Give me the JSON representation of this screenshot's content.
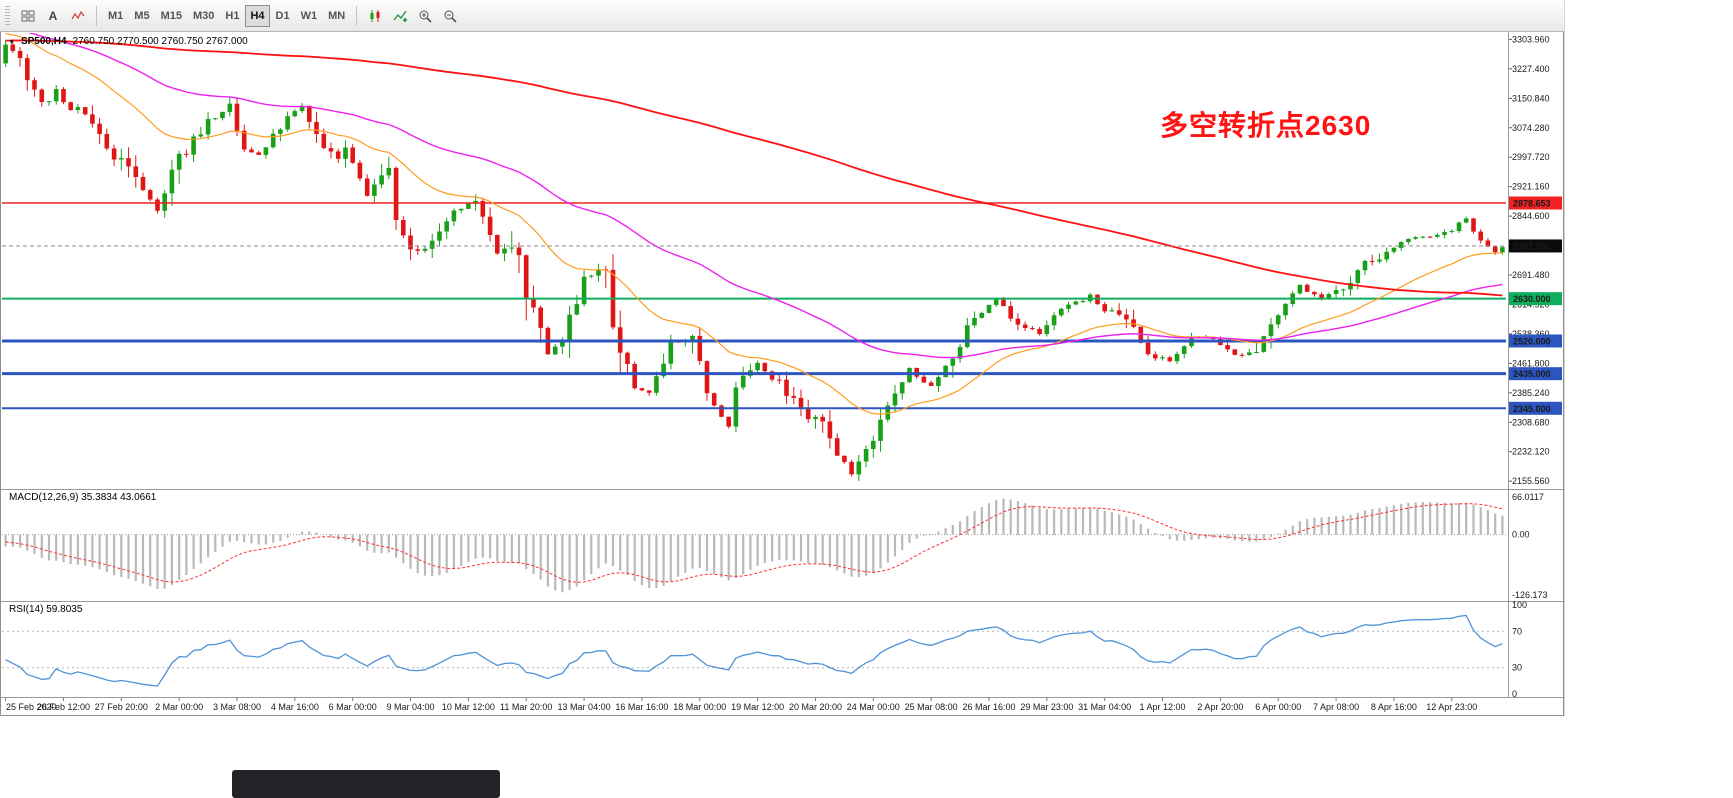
{
  "toolbar": {
    "left_icons": [
      {
        "name": "chart-windows-icon"
      },
      {
        "name": "annotation-tool-icon",
        "glyph": "A"
      },
      {
        "name": "tick-chart-icon"
      }
    ],
    "timeframes": [
      {
        "label": "M1",
        "active": false
      },
      {
        "label": "M5",
        "active": false
      },
      {
        "label": "M15",
        "active": false
      },
      {
        "label": "M30",
        "active": false
      },
      {
        "label": "H1",
        "active": false
      },
      {
        "label": "H4",
        "active": true
      },
      {
        "label": "D1",
        "active": false
      },
      {
        "label": "W1",
        "active": false
      },
      {
        "label": "MN",
        "active": false
      }
    ],
    "right_icons": [
      {
        "name": "candlestick-view-icon"
      },
      {
        "name": "indicators-icon"
      },
      {
        "name": "zoom-in-icon"
      },
      {
        "name": "zoom-out-icon"
      }
    ]
  },
  "chart": {
    "title": {
      "dropdown_glyph": "▼",
      "symbol_period": "SP500,H4",
      "ohlc": "2760.750 2770.500 2760.750 2767.000"
    },
    "annotation": {
      "text": "多空转折点2630",
      "color": "#ff1212"
    },
    "current_price": {
      "label": "2767.000",
      "value": 2767.0,
      "badge_color": "#0a0a0a"
    },
    "price_ticks": [
      "3303.960",
      "3227.400",
      "3150.840",
      "3074.280",
      "2997.720",
      "2921.160",
      "2844.600",
      "2768.040",
      "2691.480",
      "2614.920",
      "2538.360",
      "2461.800",
      "2385.240",
      "2308.680",
      "2232.120",
      "2155.560"
    ],
    "hlines": [
      {
        "label": "2878.653",
        "price": 2878.653,
        "color": "#f02222",
        "width": 1.4
      },
      {
        "label": "2630.000",
        "price": 2630.0,
        "color": "#0fae5d",
        "width": 2
      },
      {
        "label": "2520.000",
        "price": 2520.0,
        "color": "#2c55c0",
        "width": 3
      },
      {
        "label": "2435.000",
        "price": 2435.0,
        "color": "#2c55c0",
        "width": 3
      },
      {
        "label": "2345.000",
        "price": 2345.0,
        "color": "#2c55c0",
        "width": 2
      }
    ],
    "time_labels": [
      "25 Feb 2020",
      "26 Feb 12:00",
      "27 Feb 20:00",
      "2 Mar 00:00",
      "3 Mar 08:00",
      "4 Mar 16:00",
      "6 Mar 00:00",
      "9 Mar 04:00",
      "10 Mar 12:00",
      "11 Mar 20:00",
      "13 Mar 04:00",
      "16 Mar 16:00",
      "18 Mar 00:00",
      "19 Mar 12:00",
      "20 Mar 20:00",
      "24 Mar 00:00",
      "25 Mar 08:00",
      "26 Mar 16:00",
      "29 Mar 23:00",
      "31 Mar 04:00",
      "1 Apr 12:00",
      "2 Apr 20:00",
      "6 Apr 00:00",
      "7 Apr 08:00",
      "8 Apr 16:00",
      "12 Apr 23:00"
    ]
  },
  "macd": {
    "label": "MACD(12,26,9) 35.3834 43.0661",
    "axis_max": "66.0117",
    "axis_zero": "0.00",
    "axis_min": "-126.173",
    "histogram_color": "#b9b9b9",
    "signal_color": "#ff3030"
  },
  "rsi": {
    "label": "RSI(14) 59.8035",
    "axis": [
      "100",
      "70",
      "30",
      "0"
    ],
    "levels": [
      70,
      30
    ],
    "line_color": "#4f93d8"
  },
  "chart_data": {
    "type": "candlestick",
    "symbol": "SP500",
    "timeframe": "H4",
    "bars": 208,
    "ylim": [
      2143,
      3318
    ],
    "up_color": "#18a018",
    "down_color": "#e01616",
    "price_anchors": [
      [
        0,
        3295
      ],
      [
        2,
        3250
      ],
      [
        5,
        3132
      ],
      [
        7,
        3170
      ],
      [
        9,
        3120
      ],
      [
        11,
        3116
      ],
      [
        13,
        3060
      ],
      [
        15,
        3000
      ],
      [
        17,
        2978
      ],
      [
        19,
        2920
      ],
      [
        21,
        2856
      ],
      [
        23,
        2954
      ],
      [
        25,
        3020
      ],
      [
        28,
        3088
      ],
      [
        30,
        3110
      ],
      [
        31,
        3136
      ],
      [
        33,
        3010
      ],
      [
        35,
        3003
      ],
      [
        37,
        3050
      ],
      [
        39,
        3100
      ],
      [
        41,
        3130
      ],
      [
        44,
        3024
      ],
      [
        46,
        2995
      ],
      [
        47,
        3023
      ],
      [
        48,
        2990
      ],
      [
        50,
        2902
      ],
      [
        53,
        2972
      ],
      [
        54,
        2850
      ],
      [
        56,
        2746
      ],
      [
        59,
        2770
      ],
      [
        62,
        2860
      ],
      [
        65,
        2882
      ],
      [
        66,
        2840
      ],
      [
        68,
        2760
      ],
      [
        71,
        2741
      ],
      [
        72,
        2640
      ],
      [
        75,
        2480
      ],
      [
        77,
        2530
      ],
      [
        80,
        2680
      ],
      [
        83,
        2711
      ],
      [
        84,
        2550
      ],
      [
        87,
        2400
      ],
      [
        89,
        2386
      ],
      [
        92,
        2510
      ],
      [
        95,
        2529
      ],
      [
        96,
        2450
      ],
      [
        98,
        2350
      ],
      [
        100,
        2300
      ],
      [
        101,
        2398
      ],
      [
        104,
        2460
      ],
      [
        107,
        2409
      ],
      [
        110,
        2340
      ],
      [
        113,
        2304
      ],
      [
        115,
        2230
      ],
      [
        117,
        2174
      ],
      [
        119,
        2237
      ],
      [
        122,
        2360
      ],
      [
        125,
        2447
      ],
      [
        128,
        2400
      ],
      [
        131,
        2475
      ],
      [
        134,
        2580
      ],
      [
        137,
        2630
      ],
      [
        140,
        2560
      ],
      [
        143,
        2541
      ],
      [
        146,
        2610
      ],
      [
        149,
        2626
      ],
      [
        150,
        2640
      ],
      [
        152,
        2600
      ],
      [
        155,
        2584
      ],
      [
        158,
        2480
      ],
      [
        161,
        2470
      ],
      [
        164,
        2530
      ],
      [
        167,
        2526
      ],
      [
        170,
        2480
      ],
      [
        173,
        2488
      ],
      [
        176,
        2600
      ],
      [
        179,
        2663
      ],
      [
        182,
        2630
      ],
      [
        185,
        2659
      ],
      [
        188,
        2720
      ],
      [
        191,
        2749
      ],
      [
        194,
        2790
      ],
      [
        197,
        2789
      ],
      [
        200,
        2810
      ],
      [
        202,
        2838
      ],
      [
        204,
        2780
      ],
      [
        206,
        2752
      ],
      [
        207,
        2767
      ]
    ],
    "prehistory_anchors": [
      [
        -220,
        3190
      ],
      [
        -150,
        3250
      ],
      [
        -90,
        3310
      ],
      [
        -40,
        3350
      ],
      [
        -15,
        3360
      ],
      [
        -6,
        3330
      ],
      [
        -1,
        3240
      ]
    ],
    "moving_averages": [
      {
        "name": "fast",
        "type": "ema",
        "period": 24,
        "color": "#ff9c1e",
        "width": 1.2
      },
      {
        "name": "medium",
        "type": "ema",
        "period": 62,
        "color": "#ee22ee",
        "width": 1.4
      },
      {
        "name": "slow",
        "type": "sma",
        "period": 180,
        "color": "#ff1111",
        "width": 1.8
      }
    ],
    "indicators": {
      "macd": {
        "fast": 12,
        "slow": 26,
        "signal": 9,
        "current_main": 35.3834,
        "current_signal": 43.0661
      },
      "rsi": {
        "period": 14,
        "current": 59.8035
      }
    }
  }
}
